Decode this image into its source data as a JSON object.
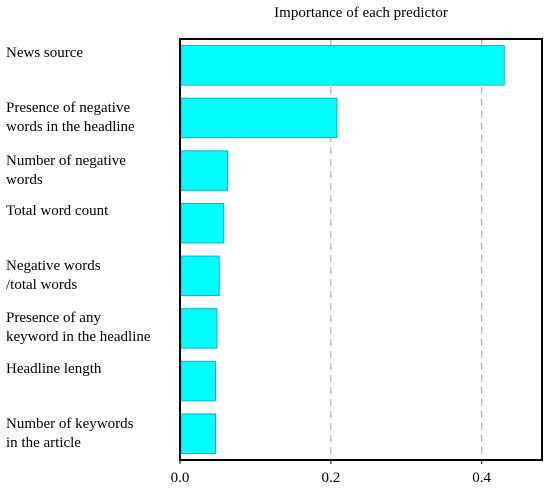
{
  "chart_data": {
    "type": "bar",
    "orientation": "horizontal",
    "title": "Importance of each predictor",
    "xlabel": "",
    "ylabel": "",
    "categories": [
      "News source",
      "Presence of negative\nwords in the headline",
      "Number of negative\nwords",
      "Total word count",
      "Negative words\n/total words",
      "Presence of any\nkeyword in the headline",
      "Headline length",
      "Number of keywords\nin the article"
    ],
    "values": [
      0.43,
      0.208,
      0.063,
      0.058,
      0.052,
      0.049,
      0.047,
      0.047
    ],
    "xlim": [
      0,
      0.48
    ],
    "xticks": [
      "0.0",
      "0.2",
      "0.4"
    ],
    "xtick_values": [
      0,
      0.2,
      0.4
    ],
    "grid": "vertical dashed at 0.2 and 0.4",
    "colors": {
      "bar_fill": "#00ffff",
      "bar_edge": "#00b4c8",
      "grid": "#a0a0a0"
    }
  }
}
